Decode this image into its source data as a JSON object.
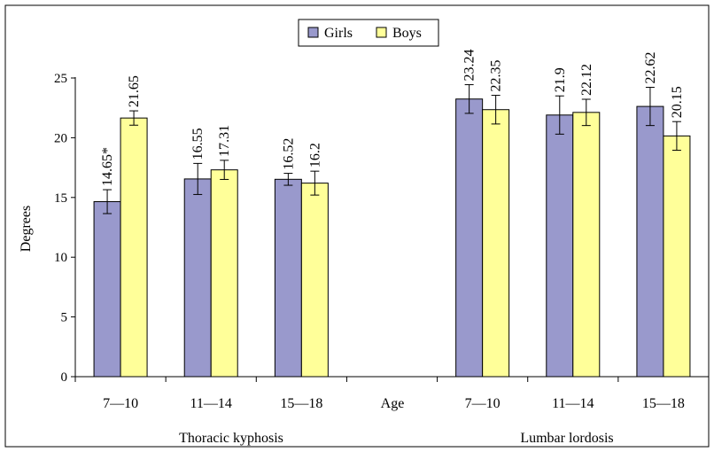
{
  "chart_data": {
    "type": "bar",
    "ylabel": "Degrees",
    "ylim": [
      0,
      25
    ],
    "yticks": [
      0,
      5,
      10,
      15,
      20,
      25
    ],
    "grid": false,
    "legend_position": "top-center",
    "axis_center_label": "Age",
    "groups": [
      {
        "label": "Thoracic kyphosis",
        "categories": [
          "7—10",
          "11—14",
          "15—18"
        ]
      },
      {
        "label": "Lumbar lordosis",
        "categories": [
          "7—10",
          "11—14",
          "15—18"
        ]
      }
    ],
    "categories": [
      "7—10",
      "11—14",
      "15—18",
      "7—10",
      "11—14",
      "15—18"
    ],
    "series": [
      {
        "name": "Girls",
        "color": "#9999cc",
        "values": [
          14.65,
          16.55,
          16.52,
          23.24,
          21.9,
          22.62
        ],
        "labels": [
          "14.65*",
          "16.55",
          "16.52",
          "23.24",
          "21.9",
          "22.62"
        ],
        "error": [
          1.0,
          1.3,
          0.5,
          1.2,
          1.6,
          1.6
        ]
      },
      {
        "name": "Boys",
        "color": "#ffff99",
        "values": [
          21.65,
          17.31,
          16.2,
          22.35,
          22.12,
          20.15
        ],
        "labels": [
          "21.65",
          "17.31",
          "16.2",
          "22.35",
          "22.12",
          "20.15"
        ],
        "error": [
          0.6,
          0.8,
          1.0,
          1.2,
          1.1,
          1.2
        ]
      }
    ]
  }
}
